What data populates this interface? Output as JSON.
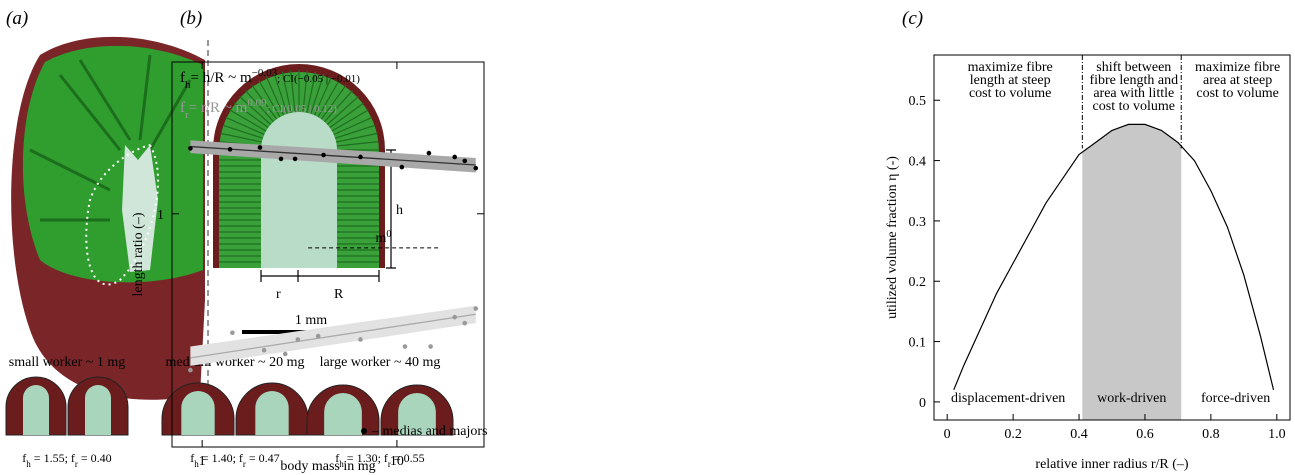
{
  "panel_labels": [
    "(a)",
    "(b)",
    "(c)"
  ],
  "diagram": {
    "inset_labels": {
      "h": "h",
      "r": "r",
      "R": "R",
      "scale": "1 mm"
    },
    "workers": [
      {
        "label": "small worker ~ 1 mg",
        "caption": [
          "f",
          "h",
          " = 1.55; ",
          "f",
          "r",
          " = 0.40"
        ]
      },
      {
        "label": "medium worker ~ 20 mg",
        "caption": [
          "f",
          "h",
          " = 1.40; ",
          "f",
          "r",
          " = 0.47"
        ]
      },
      {
        "label": "large worker ~ 40 mg",
        "caption": [
          "f",
          "h",
          " = 1.30; ",
          "f",
          "r",
          " = 0.55"
        ]
      }
    ]
  },
  "chart_data": [
    {
      "type": "scatter",
      "xlabel": "body mass in mg",
      "ylabel": "length ratio (–)",
      "log_x": true,
      "log_y": true,
      "xlim": [
        0.7,
        28
      ],
      "ylim": [
        0.2,
        2.85
      ],
      "xticks": [
        1,
        10
      ],
      "yticks": [
        1
      ],
      "series": [
        {
          "name": "– medias and majors",
          "color": "#000000",
          "x": [
            0.87,
            1.39,
            1.98,
            2.54,
            3.0,
            4.2,
            6.5,
            10.6,
            14.6,
            19.8,
            22.3,
            25.4
          ],
          "values": [
            1.57,
            1.56,
            1.58,
            1.46,
            1.46,
            1.5,
            1.48,
            1.38,
            1.52,
            1.48,
            1.44,
            1.37
          ]
        },
        {
          "color": "#999999",
          "x": [
            0.87,
            1.43,
            2.08,
            2.67,
            3.1,
            3.94,
            6.5,
            11.0,
            14.9,
            19.8,
            22.3,
            25.4
          ],
          "values": [
            0.34,
            0.44,
            0.39,
            0.38,
            0.42,
            0.43,
            0.42,
            0.4,
            0.4,
            0.49,
            0.47,
            0.52
          ]
        }
      ],
      "fits": [
        {
          "color": "#333333",
          "band_color": "#a8a8a8",
          "x": [
            0.87,
            25.4
          ],
          "y": [
            1.59,
            1.4
          ],
          "lower": [
            1.52,
            1.33
          ],
          "upper": [
            1.66,
            1.47
          ]
        },
        {
          "color": "#aaaaaa",
          "band_color": "#e2e2e2",
          "x": [
            0.87,
            25.4
          ],
          "y": [
            0.37,
            0.5
          ],
          "lower": [
            0.35,
            0.47
          ],
          "upper": [
            0.4,
            0.53
          ]
        }
      ],
      "equations": [
        {
          "color": "#000000",
          "parts": [
            "f",
            "h",
            "= h/R ~ m",
            "−0.03",
            "; CI(−0.05 | −0.01)"
          ]
        },
        {
          "color": "#999999",
          "parts": [
            "f",
            "r",
            "= r/R ~ m",
            "0.09",
            "; CI(0.05 | 0.12)"
          ]
        }
      ],
      "annotation": {
        "parts": [
          "m",
          "0"
        ],
        "x": [
          3.5,
          16.4
        ],
        "y": 0.79
      }
    },
    {
      "type": "line",
      "xlabel": "relative inner radius r/R (–)",
      "ylabel": "utilized volume fraction η (-)",
      "x": [
        0.02,
        0.05,
        0.1,
        0.15,
        0.2,
        0.25,
        0.3,
        0.35,
        0.4,
        0.45,
        0.5,
        0.55,
        0.6,
        0.65,
        0.7,
        0.75,
        0.8,
        0.85,
        0.9,
        0.95,
        0.99
      ],
      "values": [
        0.02,
        0.06,
        0.12,
        0.18,
        0.23,
        0.28,
        0.33,
        0.37,
        0.41,
        0.43,
        0.45,
        0.46,
        0.46,
        0.45,
        0.43,
        0.4,
        0.35,
        0.29,
        0.21,
        0.11,
        0.02
      ],
      "color": "#000000",
      "xlim": [
        -0.04,
        1.04
      ],
      "ylim": [
        -0.03,
        0.575
      ],
      "xticks": [
        0,
        0.2,
        0.4,
        0.6,
        0.8,
        {
          "value": 1,
          "label": "1.0"
        }
      ],
      "yticks": [
        0,
        0.1,
        0.2,
        0.3,
        0.4,
        0.5
      ],
      "band": {
        "x": [
          0.41,
          0.71
        ],
        "color": "#c8c8c8"
      },
      "regions": [
        {
          "top": [
            "maximize fibre",
            "length at steep",
            "cost to volume"
          ],
          "bottom": "displacement-driven"
        },
        {
          "top": [
            "shift between",
            "fibre length and",
            "area with little",
            "cost to volume"
          ],
          "bottom": "work-driven"
        },
        {
          "top": [
            "maximize fibre",
            "area at steep",
            "cost to volume"
          ],
          "bottom": "force-driven"
        }
      ]
    }
  ]
}
